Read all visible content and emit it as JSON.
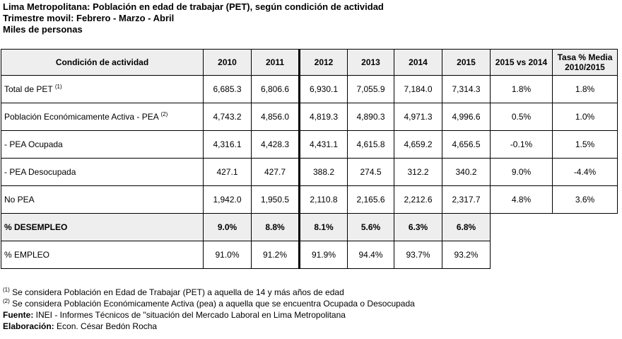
{
  "header": {
    "title": "Lima Metropolitana: Población en edad de trabajar (PET), según condición de actividad",
    "subtitle": "Trimestre movil: Febrero - Marzo - Abril",
    "units": "Miles de personas"
  },
  "table": {
    "columns": [
      "Condición de actividad",
      "2010",
      "2011",
      "2012",
      "2013",
      "2014",
      "2015",
      "2015 vs 2014",
      "Tasa % Media 2010/2015"
    ],
    "rows": [
      {
        "label": "Total de PET",
        "sup": "(1)",
        "cells": [
          "6,685.3",
          "6,806.6",
          "6,930.1",
          "7,055.9",
          "7,184.0",
          "7,314.3",
          "1.8%",
          "1.8%"
        ]
      },
      {
        "label": "Población Económicamente Activa - PEA",
        "sup": "(2)",
        "cells": [
          "4,743.2",
          "4,856.0",
          "4,819.3",
          "4,890.3",
          "4,971.3",
          "4,996.6",
          "0.5%",
          "1.0%"
        ]
      },
      {
        "label": " - PEA Ocupada",
        "sup": "",
        "cells": [
          "4,316.1",
          "4,428.3",
          "4,431.1",
          "4,615.8",
          "4,659.2",
          "4,656.5",
          "-0.1%",
          "1.5%"
        ]
      },
      {
        "label": " - PEA Desocupada",
        "sup": "",
        "cells": [
          "427.1",
          "427.7",
          "388.2",
          "274.5",
          "312.2",
          "340.2",
          "9.0%",
          "-4.4%"
        ]
      },
      {
        "label": "No PEA",
        "sup": "",
        "cells": [
          "1,942.0",
          "1,950.5",
          "2,110.8",
          "2,165.6",
          "2,212.6",
          "2,317.7",
          "4.8%",
          "3.6%"
        ]
      },
      {
        "label": "% DESEMPLEO",
        "sup": "",
        "cells": [
          "9.0%",
          "8.8%",
          "8.1%",
          "5.6%",
          "6.3%",
          "6.8%"
        ]
      },
      {
        "label": "% EMPLEO",
        "sup": "",
        "cells": [
          "91.0%",
          "91.2%",
          "91.9%",
          "94.4%",
          "93.7%",
          "93.2%"
        ]
      }
    ]
  },
  "notes": {
    "note1_sup": "(1)",
    "note1": " Se considera Población en Edad de Trabajar (PET) a aquella de 14 y más años de edad",
    "note2_sup": "(2)",
    "note2": " Se considera Población Económicamente Activa (pea) a aquella que se encuentra Ocupada o Desocupada",
    "source_label": "Fuente:",
    "source": " INEI - Informes Técnicos de \"situación del Mercado Laboral en Lima Metropolitana",
    "author_label": "Elaboración:",
    "author": " Econ. César Bedón Rocha"
  }
}
